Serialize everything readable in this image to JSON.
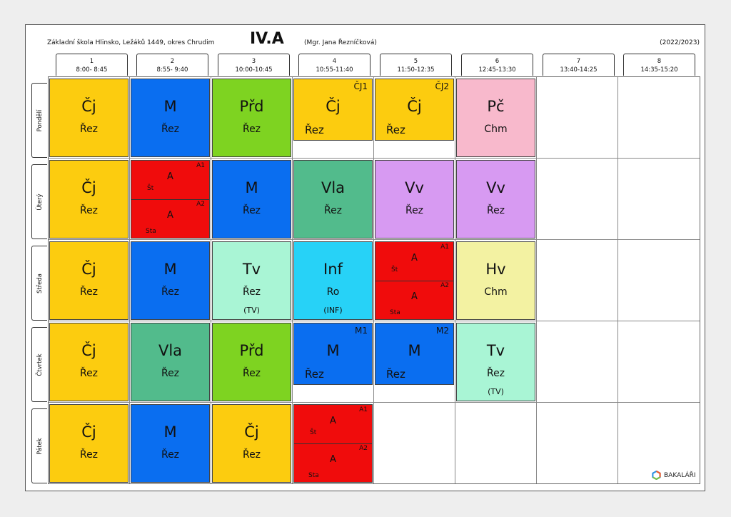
{
  "header": {
    "school": "Základní škola Hlinsko, Ležáků 1449, okres Chrudim",
    "class_name": "IV.A",
    "teacher": "(Mgr. Jana Řezníčková)",
    "year": "(2022/2023)"
  },
  "periods": [
    {
      "num": "1",
      "time": "8:00- 8:45"
    },
    {
      "num": "2",
      "time": "8:55- 9:40"
    },
    {
      "num": "3",
      "time": "10:00-10:45"
    },
    {
      "num": "4",
      "time": "10:55-11:40"
    },
    {
      "num": "5",
      "time": "11:50-12:35"
    },
    {
      "num": "6",
      "time": "12:45-13:30"
    },
    {
      "num": "7",
      "time": "13:40-14:25"
    },
    {
      "num": "8",
      "time": "14:35-15:20"
    }
  ],
  "days": [
    "Pondělí",
    "Úterý",
    "Středa",
    "Čtvrtek",
    "Pátek"
  ],
  "colors": {
    "Cj": "#fccc0f",
    "M": "#0a6ef0",
    "Prd": "#7ed321",
    "Pc": "#f8b9cc",
    "A": "#f00c0c",
    "Vla": "#52bb8c",
    "Vv": "#d79af2",
    "Tv": "#a9f5d5",
    "Inf": "#27d2f7",
    "Hv": "#f3f2a2"
  },
  "lessons": {
    "mon": [
      {
        "subject": "Čj",
        "teacher": "Řez"
      },
      {
        "subject": "M",
        "teacher": "Řez"
      },
      {
        "subject": "Přd",
        "teacher": "Řez"
      },
      {
        "subject": "Čj",
        "teacher": "Řez",
        "group": "ČJ1"
      },
      {
        "subject": "Čj",
        "teacher": "Řez",
        "group": "ČJ2"
      },
      {
        "subject": "Pč",
        "teacher": "Chm"
      }
    ],
    "tue": [
      {
        "subject": "Čj",
        "teacher": "Řez"
      },
      {
        "split": [
          {
            "subject": "A",
            "teacher": "Št",
            "group": "A1"
          },
          {
            "subject": "A",
            "teacher": "Sta",
            "group": "A2"
          }
        ]
      },
      {
        "subject": "M",
        "teacher": "Řez"
      },
      {
        "subject": "Vla",
        "teacher": "Řez"
      },
      {
        "subject": "Vv",
        "teacher": "Řez"
      },
      {
        "subject": "Vv",
        "teacher": "Řez"
      }
    ],
    "wed": [
      {
        "subject": "Čj",
        "teacher": "Řez"
      },
      {
        "subject": "M",
        "teacher": "Řez"
      },
      {
        "subject": "Tv",
        "teacher": "Řez",
        "room": "(TV)"
      },
      {
        "subject": "Inf",
        "teacher": "Ro",
        "room": "(INF)"
      },
      {
        "split": [
          {
            "subject": "A",
            "teacher": "Št",
            "group": "A1"
          },
          {
            "subject": "A",
            "teacher": "Sta",
            "group": "A2"
          }
        ]
      },
      {
        "subject": "Hv",
        "teacher": "Chm"
      }
    ],
    "thu": [
      {
        "subject": "Čj",
        "teacher": "Řez"
      },
      {
        "subject": "Vla",
        "teacher": "Řez"
      },
      {
        "subject": "Přd",
        "teacher": "Řez"
      },
      {
        "subject": "M",
        "teacher": "Řez",
        "group": "M1"
      },
      {
        "subject": "M",
        "teacher": "Řez",
        "group": "M2"
      },
      {
        "subject": "Tv",
        "teacher": "Řez",
        "room": "(TV)"
      }
    ],
    "fri": [
      {
        "subject": "Čj",
        "teacher": "Řez"
      },
      {
        "subject": "M",
        "teacher": "Řez"
      },
      {
        "subject": "Čj",
        "teacher": "Řez"
      },
      {
        "split": [
          {
            "subject": "A",
            "teacher": "Št",
            "group": "A1"
          },
          {
            "subject": "A",
            "teacher": "Sta",
            "group": "A2"
          }
        ]
      }
    ]
  },
  "logo": {
    "text": "BAKALÁŘI",
    "icon": "bakalari-hexagon-icon"
  }
}
